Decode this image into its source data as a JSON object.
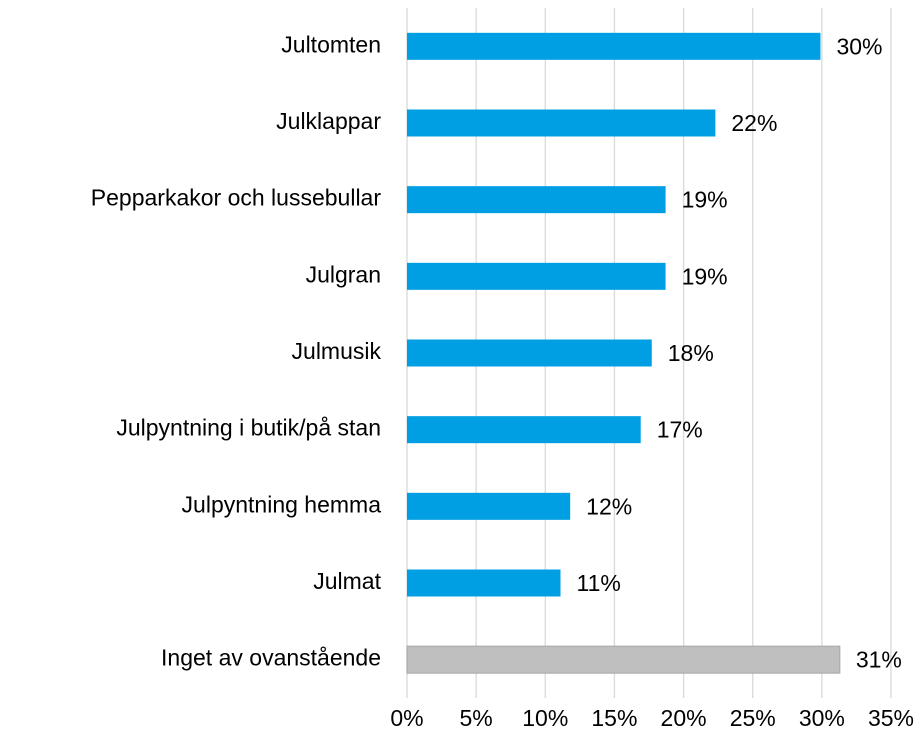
{
  "chart_data": {
    "type": "barh",
    "categories": [
      "Jultomten",
      "Julklappar",
      "Pepparkakor och lussebullar",
      "Julgran",
      "Julmusik",
      "Julpyntning i butik/på stan",
      "Julpyntning hemma",
      "Julmat",
      "Inget av ovanstående"
    ],
    "values": [
      29.9,
      22.3,
      18.7,
      18.7,
      17.7,
      16.9,
      11.8,
      11.1,
      31.3
    ],
    "value_labels": [
      "30%",
      "22%",
      "19%",
      "19%",
      "18%",
      "17%",
      "12%",
      "11%",
      "31%"
    ],
    "colors": [
      "#009fe3",
      "#009fe3",
      "#009fe3",
      "#009fe3",
      "#009fe3",
      "#009fe3",
      "#009fe3",
      "#009fe3",
      "#bfbfbf"
    ],
    "xlim": [
      0,
      35
    ],
    "xticks": [
      {
        "value": 0,
        "label": "0%"
      },
      {
        "value": 5,
        "label": "5%"
      },
      {
        "value": 10,
        "label": "10%"
      },
      {
        "value": 15,
        "label": "15%"
      },
      {
        "value": 20,
        "label": "20%"
      },
      {
        "value": 25,
        "label": "25%"
      },
      {
        "value": 30,
        "label": "30%"
      },
      {
        "value": 35,
        "label": "35%"
      }
    ],
    "grid": true
  }
}
